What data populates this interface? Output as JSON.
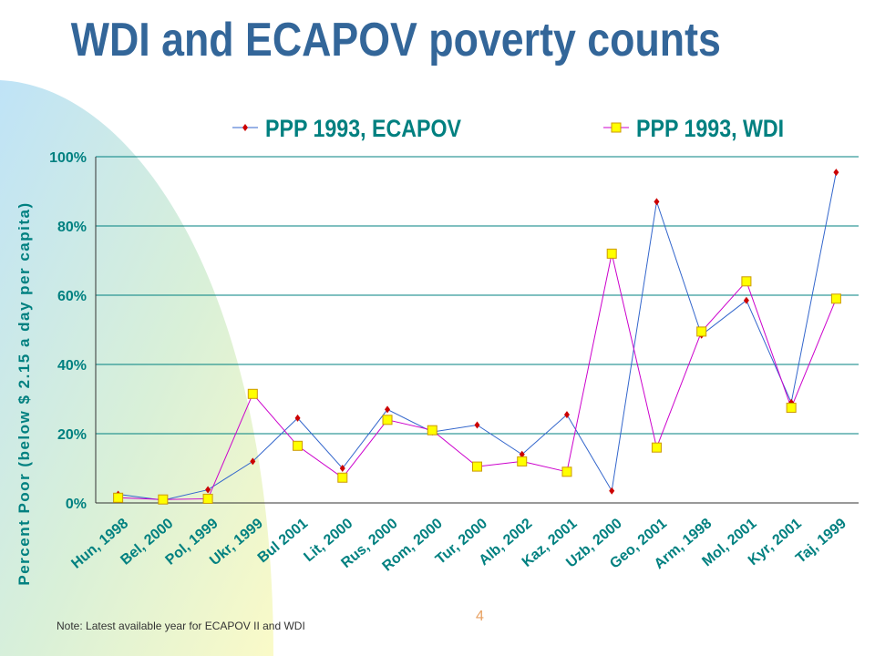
{
  "slide": {
    "title": "WDI and ECAPOV poverty counts",
    "note": "Note: Latest available year for ECAPOV II and WDI",
    "page_number": "4"
  },
  "colors": {
    "title": "#336699",
    "gridline": "#008080",
    "axis_text": "#008080",
    "ecapov": "#3366cc",
    "ecapov_marker": "#cc0000",
    "wdi": "#cc00cc",
    "wdi_marker_fill": "#ffff00",
    "wdi_marker_stroke": "#cc9900"
  },
  "chart_data": {
    "type": "line",
    "ylabel": "Percent Poor (below $ 2.15 a day per capita)",
    "ylim": [
      0,
      100
    ],
    "yticks": [
      "0%",
      "20%",
      "40%",
      "60%",
      "80%",
      "100%"
    ],
    "grid": true,
    "legend_position": "top",
    "categories": [
      "Hun, 1998",
      "Bel, 2000",
      "Pol, 1999",
      "Ukr, 1999",
      "Bul 2001",
      "Lit, 2000",
      "Rus, 2000",
      "Rom, 2000",
      "Tur, 2000",
      "Alb, 2002",
      "Kaz, 2001",
      "Uzb, 2000",
      "Geo, 2001",
      "Arm, 1998",
      "Mol, 2001",
      "Kyr, 2001",
      "Taj, 1999"
    ],
    "series": [
      {
        "name": "PPP 1993, ECAPOV",
        "values": [
          2.5,
          0.8,
          3.8,
          12,
          24.5,
          10,
          27,
          20.5,
          22.5,
          14,
          25.5,
          3.5,
          87,
          48.5,
          58.5,
          29,
          95.5
        ]
      },
      {
        "name": "PPP 1993, WDI",
        "values": [
          1.5,
          1,
          1.2,
          31.5,
          16.5,
          7.3,
          24,
          21,
          10.5,
          12,
          9,
          72,
          16,
          49.5,
          64,
          27.5,
          59
        ]
      }
    ]
  }
}
